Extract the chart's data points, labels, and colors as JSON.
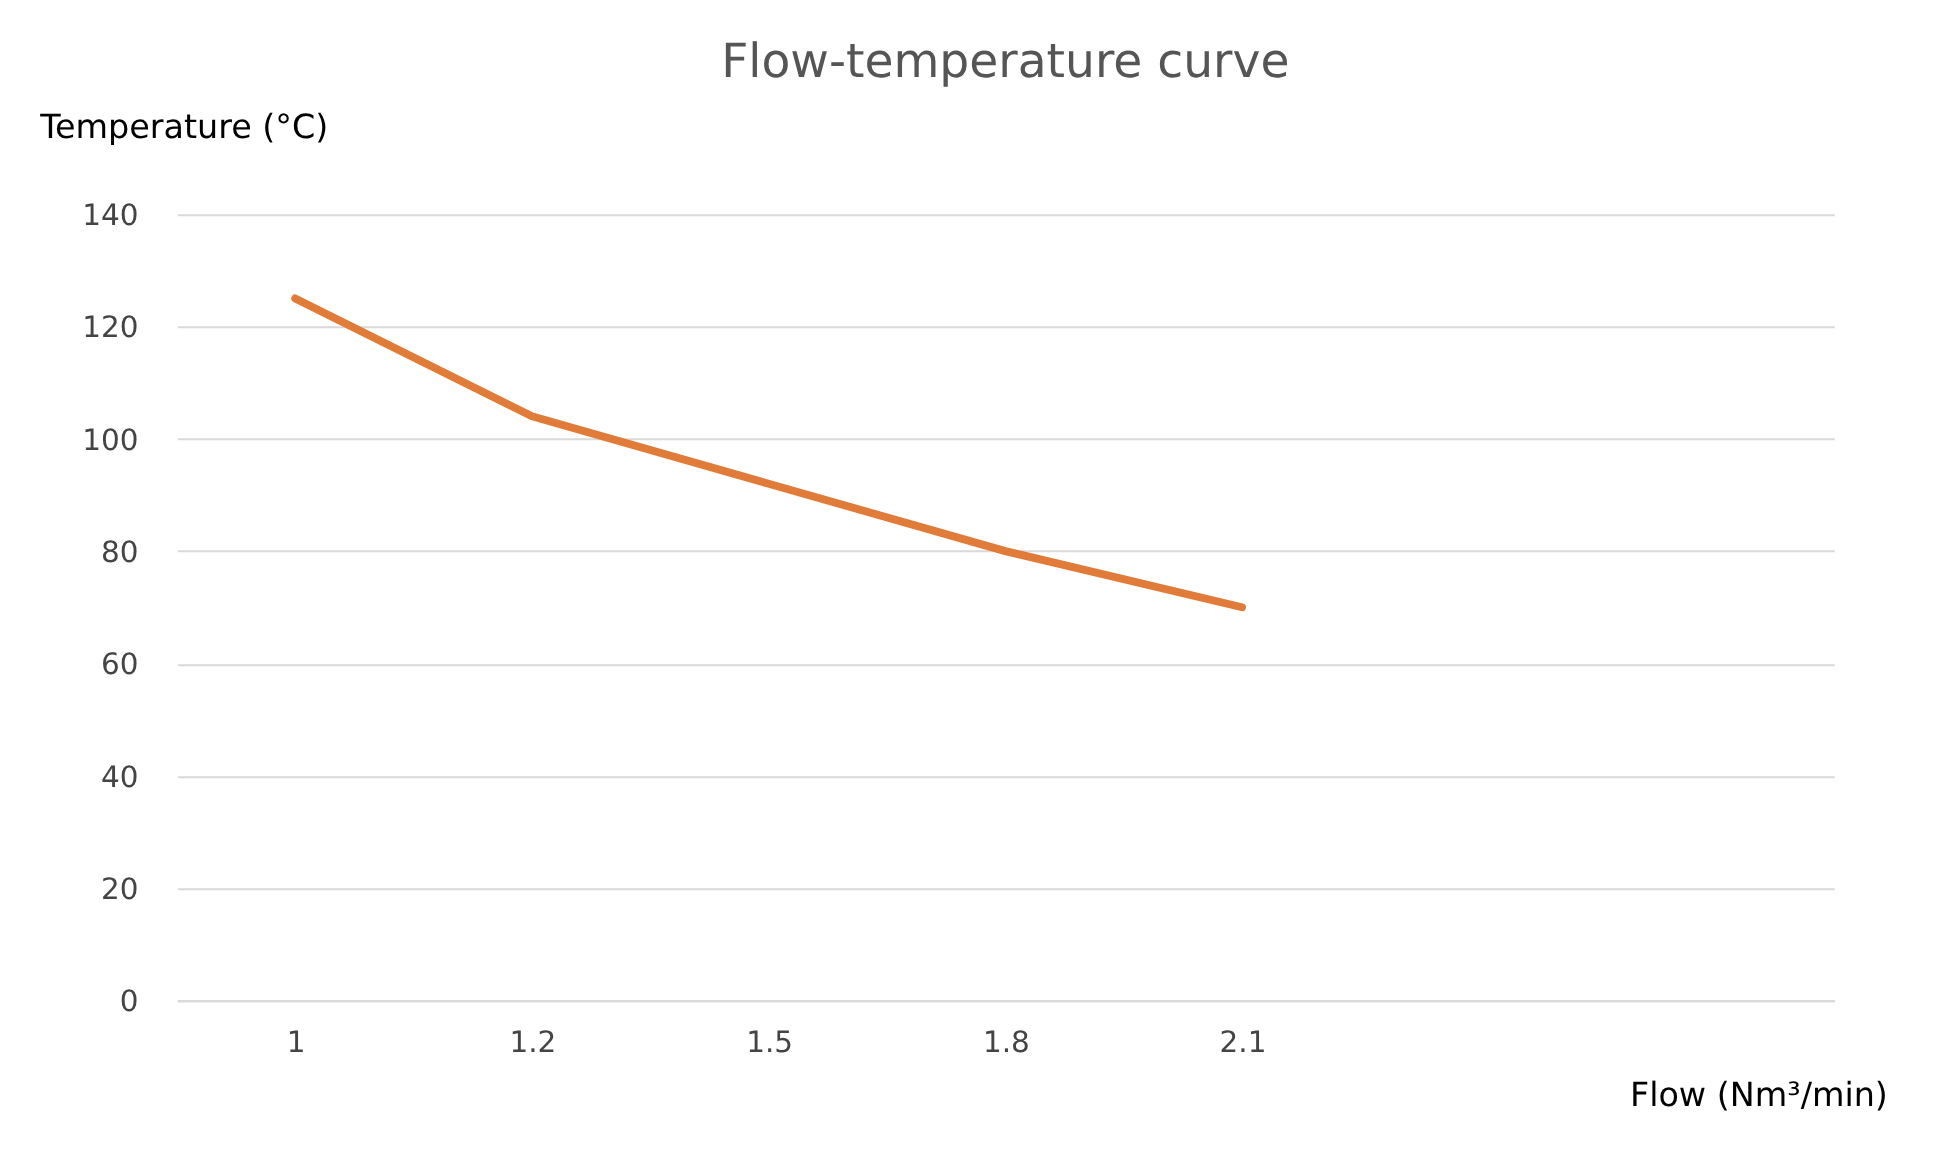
{
  "chart_data": {
    "type": "line",
    "title": "Flow-temperature curve",
    "xlabel": "Flow (Nm³/min)",
    "ylabel": "Temperature (°C)",
    "categories": [
      "1",
      "1.2",
      "1.5",
      "1.8",
      "2.1",
      null,
      null
    ],
    "series": [
      {
        "color": "#e07b39",
        "values": [
          125,
          104,
          92,
          80,
          70,
          null,
          null
        ]
      }
    ],
    "ylim": [
      0,
      140
    ],
    "yticks": [
      0,
      20,
      40,
      60,
      80,
      100,
      120,
      140
    ],
    "grid": "y",
    "marker": "none",
    "line_style": "solid"
  }
}
